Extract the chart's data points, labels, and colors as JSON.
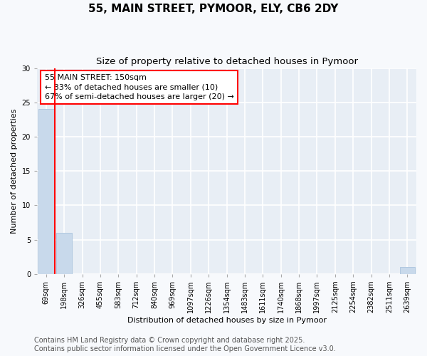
{
  "title": "55, MAIN STREET, PYMOOR, ELY, CB6 2DY",
  "subtitle": "Size of property relative to detached houses in Pymoor",
  "xlabel": "Distribution of detached houses by size in Pymoor",
  "ylabel": "Number of detached properties",
  "bins": [
    "69sqm",
    "198sqm",
    "326sqm",
    "455sqm",
    "583sqm",
    "712sqm",
    "840sqm",
    "969sqm",
    "1097sqm",
    "1226sqm",
    "1354sqm",
    "1483sqm",
    "1611sqm",
    "1740sqm",
    "1868sqm",
    "1997sqm",
    "2125sqm",
    "2254sqm",
    "2382sqm",
    "2511sqm",
    "2639sqm"
  ],
  "bar_heights": [
    24,
    6,
    0,
    0,
    0,
    0,
    0,
    0,
    0,
    0,
    0,
    0,
    0,
    0,
    0,
    0,
    0,
    0,
    0,
    0,
    1
  ],
  "bar_color": "#c8d9eb",
  "bar_edgecolor": "#b0c8e0",
  "ylim": [
    0,
    30
  ],
  "yticks": [
    0,
    5,
    10,
    15,
    20,
    25,
    30
  ],
  "annotation_line1": "55 MAIN STREET: 150sqm",
  "annotation_line2": "← 33% of detached houses are smaller (10)",
  "annotation_line3": "67% of semi-detached houses are larger (20) →",
  "redline_x": 0.5,
  "footer_line1": "Contains HM Land Registry data © Crown copyright and database right 2025.",
  "footer_line2": "Contains public sector information licensed under the Open Government Licence v3.0.",
  "bg_color": "#f7f9fc",
  "plot_bg_color": "#e8eef5",
  "grid_color": "#ffffff",
  "title_fontsize": 11,
  "subtitle_fontsize": 9.5,
  "axis_label_fontsize": 8,
  "tick_fontsize": 7,
  "annotation_fontsize": 8,
  "footer_fontsize": 7
}
